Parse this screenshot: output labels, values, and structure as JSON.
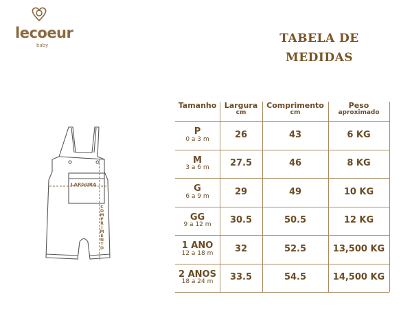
{
  "logo": {
    "name": "lecoeur",
    "tagline": "baby"
  },
  "title": {
    "line1": "TABELA DE",
    "line2": "MEDIDAS"
  },
  "illustration": {
    "width_label": "LARGURA",
    "length_label": "COMPRIMENTO"
  },
  "table": {
    "headers": [
      {
        "main": "Tamanho"
      },
      {
        "main": "Largura",
        "sub": "cm"
      },
      {
        "main": "Comprimento",
        "sub": "cm"
      },
      {
        "main": "Peso",
        "sub": "aproximado"
      }
    ],
    "rows": [
      {
        "size": "P",
        "age": "0 a 3 m",
        "cells": [
          "26",
          "43",
          "6 KG"
        ]
      },
      {
        "size": "M",
        "age": "3 a 6 m",
        "cells": [
          "27.5",
          "46",
          "8 KG"
        ]
      },
      {
        "size": "G",
        "age": "6 a 9 m",
        "cells": [
          "29",
          "49",
          "10 KG"
        ]
      },
      {
        "size": "GG",
        "age": "9 a 12 m",
        "cells": [
          "30.5",
          "50.5",
          "12 KG"
        ]
      },
      {
        "size": "1 ANO",
        "age": "12 a 18 m",
        "cells": [
          "32",
          "52.5",
          "13,500 KG"
        ]
      },
      {
        "size": "2 ANOS",
        "age": "18 a 24 m",
        "cells": [
          "33.5",
          "54.5",
          "14,500 KG"
        ]
      }
    ]
  }
}
